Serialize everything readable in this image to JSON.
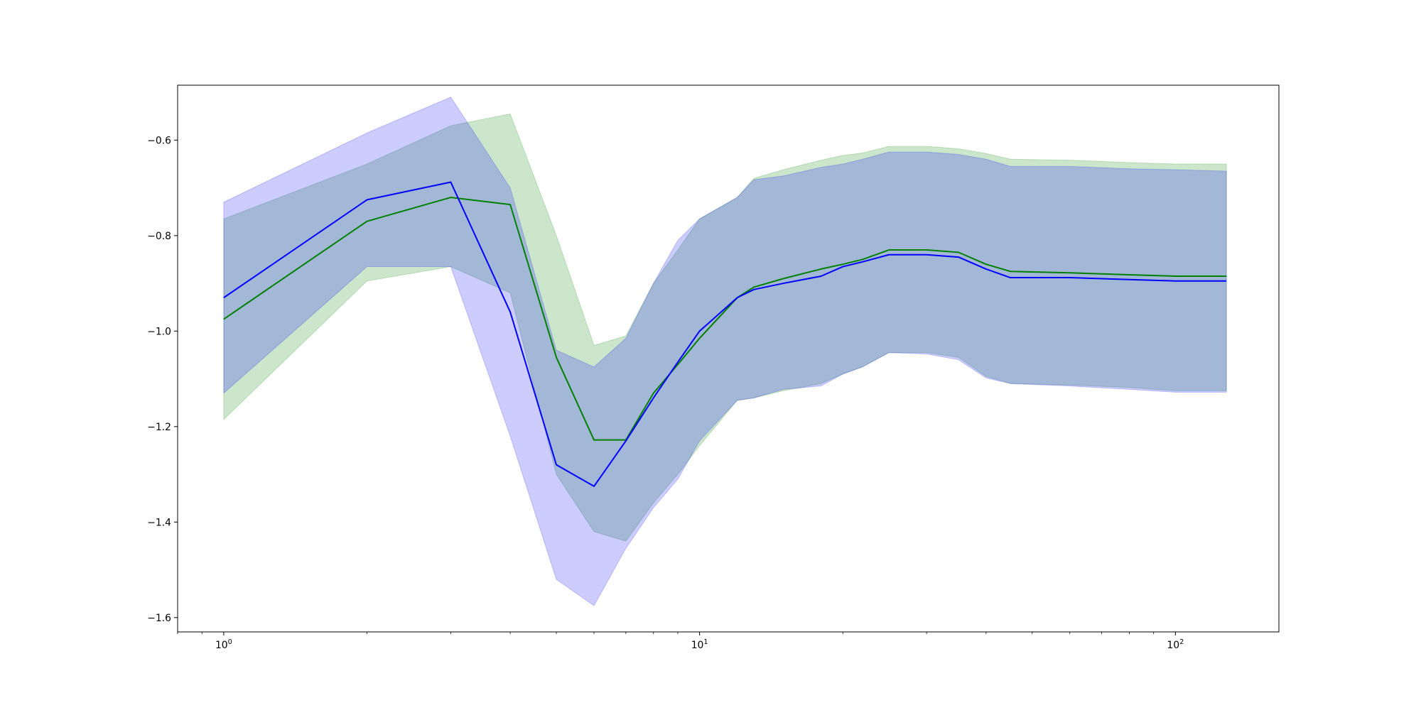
{
  "chart_data": {
    "type": "area",
    "title": "",
    "xlabel": "",
    "ylabel": "",
    "x_scale": "log",
    "xlim": [
      0.8,
      165
    ],
    "ylim": [
      -1.63,
      -0.485
    ],
    "grid": false,
    "legend": "none",
    "x_ticks": [
      {
        "value": 1,
        "base": "10",
        "exp": "0"
      },
      {
        "value": 10,
        "base": "10",
        "exp": "1"
      },
      {
        "value": 100,
        "base": "10",
        "exp": "2"
      }
    ],
    "y_ticks": [
      {
        "value": -0.6,
        "label": "−0.6"
      },
      {
        "value": -0.8,
        "label": "−0.8"
      },
      {
        "value": -1.0,
        "label": "−1.0"
      },
      {
        "value": -1.2,
        "label": "−1.2"
      },
      {
        "value": -1.4,
        "label": "−1.4"
      },
      {
        "value": -1.6,
        "label": "−1.6"
      }
    ],
    "series": [
      {
        "color": "#008000",
        "fill_color": "#008000",
        "fill_opacity": 0.2,
        "x": [
          1,
          2,
          3,
          4,
          5,
          6,
          7,
          8,
          9,
          10,
          12,
          13,
          15,
          18,
          20,
          22,
          25,
          30,
          35,
          40,
          45,
          60,
          80,
          100,
          128
        ],
        "mean": [
          -0.975,
          -0.77,
          -0.72,
          -0.735,
          -1.055,
          -1.228,
          -1.228,
          -1.13,
          -1.07,
          -1.015,
          -0.93,
          -0.908,
          -0.89,
          -0.87,
          -0.86,
          -0.85,
          -0.83,
          -0.83,
          -0.835,
          -0.86,
          -0.875,
          -0.878,
          -0.882,
          -0.885,
          -0.885
        ],
        "upper": [
          -0.765,
          -0.65,
          -0.57,
          -0.545,
          -0.8,
          -1.03,
          -1.01,
          -0.9,
          -0.83,
          -0.765,
          -0.72,
          -0.68,
          -0.662,
          -0.642,
          -0.632,
          -0.627,
          -0.613,
          -0.613,
          -0.618,
          -0.628,
          -0.64,
          -0.642,
          -0.647,
          -0.65,
          -0.65
        ],
        "lower": [
          -1.185,
          -0.895,
          -0.865,
          -0.92,
          -1.3,
          -1.42,
          -1.44,
          -1.36,
          -1.3,
          -1.24,
          -1.145,
          -1.14,
          -1.125,
          -1.11,
          -1.09,
          -1.075,
          -1.045,
          -1.045,
          -1.055,
          -1.095,
          -1.11,
          -1.113,
          -1.118,
          -1.125,
          -1.125
        ]
      },
      {
        "color": "#0000ff",
        "fill_color": "#0000ff",
        "fill_opacity": 0.2,
        "x": [
          1,
          2,
          3,
          4,
          5,
          6,
          7,
          8,
          9,
          10,
          12,
          13,
          15,
          18,
          20,
          22,
          25,
          30,
          35,
          40,
          45,
          60,
          80,
          100,
          128
        ],
        "mean": [
          -0.93,
          -0.725,
          -0.688,
          -0.96,
          -1.28,
          -1.325,
          -1.23,
          -1.14,
          -1.065,
          -1.0,
          -0.93,
          -0.913,
          -0.9,
          -0.885,
          -0.865,
          -0.855,
          -0.84,
          -0.84,
          -0.845,
          -0.87,
          -0.888,
          -0.888,
          -0.892,
          -0.895,
          -0.895
        ],
        "upper": [
          -0.73,
          -0.585,
          -0.51,
          -0.7,
          -1.04,
          -1.075,
          -1.015,
          -0.9,
          -0.81,
          -0.765,
          -0.72,
          -0.683,
          -0.675,
          -0.657,
          -0.65,
          -0.64,
          -0.625,
          -0.625,
          -0.63,
          -0.64,
          -0.655,
          -0.655,
          -0.66,
          -0.662,
          -0.665
        ],
        "lower": [
          -1.13,
          -0.865,
          -0.865,
          -1.22,
          -1.52,
          -1.575,
          -1.455,
          -1.37,
          -1.31,
          -1.23,
          -1.145,
          -1.14,
          -1.122,
          -1.115,
          -1.09,
          -1.075,
          -1.045,
          -1.048,
          -1.06,
          -1.098,
          -1.11,
          -1.115,
          -1.122,
          -1.128,
          -1.128
        ]
      }
    ]
  }
}
